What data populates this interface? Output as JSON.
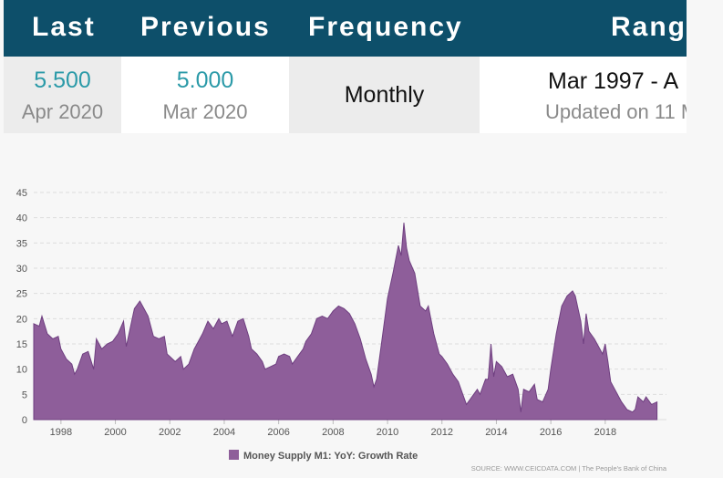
{
  "header": {
    "last_label": "Last",
    "previous_label": "Previous",
    "frequency_label": "Frequency",
    "range_label": "Rang"
  },
  "summary": {
    "last_value": "5.500",
    "last_date": "Apr 2020",
    "previous_value": "5.000",
    "previous_date": "Mar 2020",
    "frequency": "Monthly",
    "range": "Mar 1997 - A",
    "updated": "Updated on 11 M"
  },
  "colors": {
    "header_bg": "#0d4f6a",
    "value_teal": "#2b9aa8",
    "area_fill": "#8e5e9a",
    "area_stroke": "#6f3f80"
  },
  "chart_data": {
    "type": "area",
    "xlim": [
      1997.0,
      2020.25
    ],
    "ylim": [
      0,
      45
    ],
    "yticks": [
      0,
      5,
      10,
      15,
      20,
      25,
      30,
      35,
      40,
      45
    ],
    "xticks": [
      1998,
      2000,
      2002,
      2004,
      2006,
      2008,
      2010,
      2012,
      2014,
      2016,
      2018
    ],
    "grid": true,
    "legend_position": "bottom",
    "series": [
      {
        "name": "Money Supply M1: YoY: Growth Rate",
        "points": [
          [
            1997.0,
            19
          ],
          [
            1997.2,
            18.5
          ],
          [
            1997.3,
            20.5
          ],
          [
            1997.5,
            17
          ],
          [
            1997.7,
            16
          ],
          [
            1997.9,
            16.5
          ],
          [
            1998.0,
            14
          ],
          [
            1998.2,
            12
          ],
          [
            1998.4,
            11
          ],
          [
            1998.5,
            9
          ],
          [
            1998.6,
            10
          ],
          [
            1998.8,
            13
          ],
          [
            1999.0,
            13.5
          ],
          [
            1999.2,
            10
          ],
          [
            1999.3,
            16
          ],
          [
            1999.5,
            14
          ],
          [
            1999.7,
            15
          ],
          [
            1999.9,
            15.5
          ],
          [
            2000.1,
            17
          ],
          [
            2000.3,
            19.5
          ],
          [
            2000.4,
            14.5
          ],
          [
            2000.5,
            17
          ],
          [
            2000.7,
            22
          ],
          [
            2000.9,
            23.5
          ],
          [
            2001.0,
            22.5
          ],
          [
            2001.2,
            20.5
          ],
          [
            2001.4,
            16.5
          ],
          [
            2001.6,
            16
          ],
          [
            2001.8,
            16.5
          ],
          [
            2001.9,
            13
          ],
          [
            2002.0,
            12.5
          ],
          [
            2002.2,
            11.5
          ],
          [
            2002.4,
            12.5
          ],
          [
            2002.5,
            10
          ],
          [
            2002.7,
            11
          ],
          [
            2002.9,
            14
          ],
          [
            2003.0,
            15
          ],
          [
            2003.2,
            17
          ],
          [
            2003.4,
            19.5
          ],
          [
            2003.6,
            18
          ],
          [
            2003.8,
            20
          ],
          [
            2003.9,
            19
          ],
          [
            2004.1,
            19.5
          ],
          [
            2004.3,
            16.5
          ],
          [
            2004.5,
            19.5
          ],
          [
            2004.7,
            20
          ],
          [
            2004.9,
            16.5
          ],
          [
            2005.0,
            14
          ],
          [
            2005.2,
            13
          ],
          [
            2005.4,
            11.5
          ],
          [
            2005.5,
            10
          ],
          [
            2005.7,
            10.5
          ],
          [
            2005.9,
            11
          ],
          [
            2006.0,
            12.5
          ],
          [
            2006.2,
            13
          ],
          [
            2006.4,
            12.5
          ],
          [
            2006.5,
            11
          ],
          [
            2006.7,
            12.5
          ],
          [
            2006.9,
            14
          ],
          [
            2007.0,
            15.5
          ],
          [
            2007.2,
            17
          ],
          [
            2007.4,
            20
          ],
          [
            2007.6,
            20.5
          ],
          [
            2007.8,
            20
          ],
          [
            2008.0,
            21.5
          ],
          [
            2008.2,
            22.5
          ],
          [
            2008.4,
            22
          ],
          [
            2008.6,
            21
          ],
          [
            2008.8,
            19
          ],
          [
            2009.0,
            16
          ],
          [
            2009.2,
            12
          ],
          [
            2009.4,
            9
          ],
          [
            2009.5,
            6.5
          ],
          [
            2009.6,
            8
          ],
          [
            2009.8,
            16
          ],
          [
            2010.0,
            24
          ],
          [
            2010.2,
            29
          ],
          [
            2010.4,
            34.5
          ],
          [
            2010.5,
            32.5
          ],
          [
            2010.6,
            39
          ],
          [
            2010.7,
            34
          ],
          [
            2010.8,
            31.5
          ],
          [
            2011.0,
            29
          ],
          [
            2011.2,
            22.5
          ],
          [
            2011.4,
            21.5
          ],
          [
            2011.5,
            22.5
          ],
          [
            2011.7,
            17
          ],
          [
            2011.9,
            13
          ],
          [
            2012.0,
            12.5
          ],
          [
            2012.2,
            11
          ],
          [
            2012.4,
            9
          ],
          [
            2012.6,
            7.5
          ],
          [
            2012.8,
            4.5
          ],
          [
            2012.9,
            3
          ],
          [
            2013.1,
            4.5
          ],
          [
            2013.3,
            6
          ],
          [
            2013.4,
            5
          ],
          [
            2013.6,
            8
          ],
          [
            2013.7,
            8
          ],
          [
            2013.8,
            15
          ],
          [
            2013.9,
            8.5
          ],
          [
            2014.0,
            11.5
          ],
          [
            2014.2,
            10.5
          ],
          [
            2014.4,
            8.5
          ],
          [
            2014.6,
            9
          ],
          [
            2014.8,
            6
          ],
          [
            2014.9,
            1.5
          ],
          [
            2015.0,
            6
          ],
          [
            2015.2,
            5.5
          ],
          [
            2015.4,
            7
          ],
          [
            2015.5,
            4
          ],
          [
            2015.7,
            3.5
          ],
          [
            2015.9,
            6
          ],
          [
            2016.0,
            10
          ],
          [
            2016.2,
            17
          ],
          [
            2016.4,
            22.5
          ],
          [
            2016.6,
            24.5
          ],
          [
            2016.8,
            25.5
          ],
          [
            2016.9,
            24.5
          ],
          [
            2017.0,
            22
          ],
          [
            2017.1,
            19.5
          ],
          [
            2017.2,
            15
          ],
          [
            2017.3,
            21
          ],
          [
            2017.4,
            17.5
          ],
          [
            2017.6,
            16
          ],
          [
            2017.8,
            14
          ],
          [
            2017.9,
            13
          ],
          [
            2018.0,
            15
          ],
          [
            2018.1,
            11.5
          ],
          [
            2018.2,
            7.5
          ],
          [
            2018.4,
            5.5
          ],
          [
            2018.6,
            3.5
          ],
          [
            2018.8,
            2
          ],
          [
            2019.0,
            1.5
          ],
          [
            2019.1,
            2
          ],
          [
            2019.2,
            4.5
          ],
          [
            2019.4,
            3.5
          ],
          [
            2019.5,
            4.5
          ],
          [
            2019.7,
            3
          ],
          [
            2019.9,
            3.5
          ]
        ]
      }
    ],
    "source": "SOURCE: WWW.CEICDATA.COM | The People's Bank of China"
  }
}
